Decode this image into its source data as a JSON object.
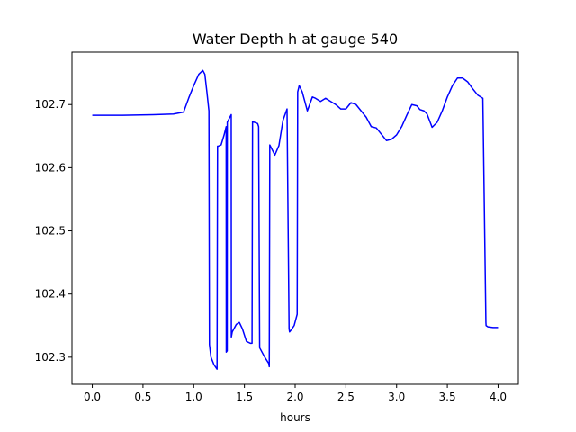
{
  "chart_data": {
    "type": "line",
    "title": "Water Depth h at gauge 540",
    "xlabel": "hours",
    "ylabel": "",
    "xlim": [
      -0.2,
      4.2
    ],
    "ylim": [
      102.257,
      102.783
    ],
    "xticks": [
      0.0,
      0.5,
      1.0,
      1.5,
      2.0,
      2.5,
      3.0,
      3.5,
      4.0
    ],
    "xtick_labels": [
      "0.0",
      "0.5",
      "1.0",
      "1.5",
      "2.0",
      "2.5",
      "3.0",
      "3.5",
      "4.0"
    ],
    "yticks": [
      102.3,
      102.4,
      102.5,
      102.6,
      102.7
    ],
    "ytick_labels": [
      "102.3",
      "102.4",
      "102.5",
      "102.6",
      "102.7"
    ],
    "grid": false,
    "legend": "none",
    "series": [
      {
        "color": "#0000ff",
        "x": [
          0.0,
          0.3,
          0.6,
          0.8,
          0.9,
          0.95,
          1.0,
          1.05,
          1.09,
          1.11,
          1.13,
          1.15,
          1.155,
          1.17,
          1.2,
          1.23,
          1.235,
          1.24,
          1.27,
          1.3,
          1.32,
          1.321,
          1.33,
          1.331,
          1.37,
          1.371,
          1.38,
          1.42,
          1.45,
          1.48,
          1.52,
          1.56,
          1.575,
          1.58,
          1.63,
          1.64,
          1.65,
          1.7,
          1.74,
          1.745,
          1.75,
          1.8,
          1.84,
          1.88,
          1.92,
          1.94,
          1.945,
          1.96,
          1.99,
          2.02,
          2.025,
          2.04,
          2.07,
          2.12,
          2.17,
          2.2,
          2.25,
          2.3,
          2.35,
          2.4,
          2.45,
          2.5,
          2.55,
          2.6,
          2.7,
          2.75,
          2.8,
          2.85,
          2.9,
          2.95,
          3.0,
          3.05,
          3.1,
          3.15,
          3.2,
          3.23,
          3.27,
          3.3,
          3.35,
          3.4,
          3.45,
          3.5,
          3.55,
          3.6,
          3.65,
          3.7,
          3.75,
          3.8,
          3.85,
          3.88,
          3.882,
          3.9,
          3.95,
          4.0
        ],
        "values": [
          102.683,
          102.683,
          102.684,
          102.685,
          102.688,
          102.71,
          102.73,
          102.748,
          102.754,
          102.748,
          102.72,
          102.69,
          102.32,
          102.3,
          102.288,
          102.281,
          102.634,
          102.634,
          102.636,
          102.652,
          102.665,
          102.308,
          102.31,
          102.672,
          102.684,
          102.332,
          102.34,
          102.352,
          102.355,
          102.345,
          102.325,
          102.322,
          102.322,
          102.673,
          102.67,
          102.665,
          102.315,
          102.3,
          102.29,
          102.285,
          102.636,
          102.62,
          102.635,
          102.675,
          102.693,
          102.345,
          102.34,
          102.343,
          102.35,
          102.368,
          102.72,
          102.73,
          102.72,
          102.69,
          102.712,
          102.71,
          102.705,
          102.71,
          102.705,
          102.7,
          102.693,
          102.693,
          102.703,
          102.7,
          102.68,
          102.665,
          102.663,
          102.653,
          102.643,
          102.645,
          102.652,
          102.665,
          102.683,
          102.7,
          102.698,
          102.692,
          102.69,
          102.685,
          102.664,
          102.672,
          102.69,
          102.712,
          102.73,
          102.742,
          102.742,
          102.736,
          102.725,
          102.715,
          102.71,
          102.355,
          102.35,
          102.348,
          102.347,
          102.347
        ]
      }
    ]
  }
}
